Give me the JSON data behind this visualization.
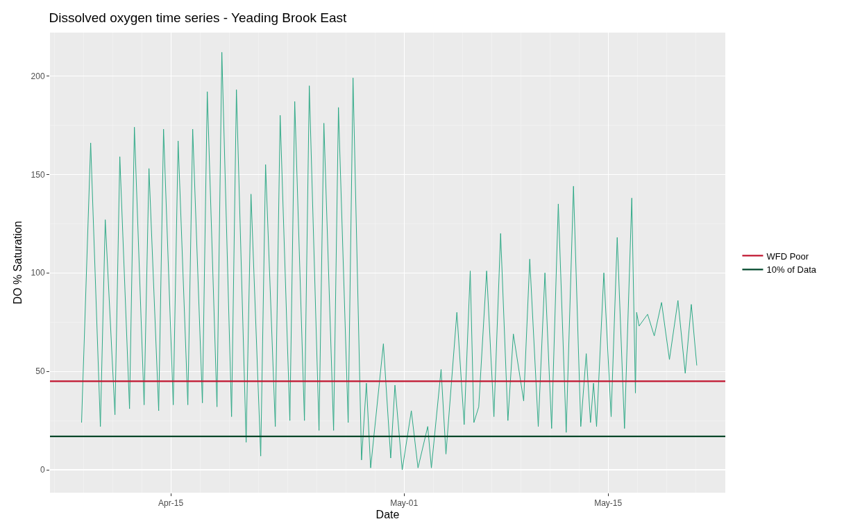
{
  "chart_data": {
    "type": "line",
    "title": "Dissolved oxygen time series - Yeading Brook East",
    "xlabel": "Date",
    "ylabel": "DO % Saturation",
    "x": [
      "--04-08T21:00",
      "--04-09T12:00",
      "--04-10T04:00",
      "--04-10T12:00",
      "--04-11T04:00",
      "--04-11T12:00",
      "--04-12T04:00",
      "--04-12T12:00",
      "--04-13T04:00",
      "--04-13T12:00",
      "--04-14T04:00",
      "--04-14T12:00",
      "--04-15T04:00",
      "--04-15T12:00",
      "--04-16T04:00",
      "--04-16T12:00",
      "--04-17T04:00",
      "--04-17T12:00",
      "--04-18T04:00",
      "--04-18T12:00",
      "--04-19T04:00",
      "--04-19T12:00",
      "--04-20T04:00",
      "--04-20T12:00",
      "--04-21T04:00",
      "--04-21T12:00",
      "--04-22T04:00",
      "--04-22T12:00",
      "--04-23T04:00",
      "--04-23T12:00",
      "--04-24T04:00",
      "--04-24T12:00",
      "--04-25T04:00",
      "--04-25T12:00",
      "--04-26T04:00",
      "--04-26T12:00",
      "--04-27T04:00",
      "--04-27T12:00",
      "--04-28T02:00",
      "--04-28T10:00",
      "--04-28T17:00",
      "--04-29T14:00",
      "--04-30T02:00",
      "--04-30T09:00",
      "--04-30T21:00",
      "--05-01T12:00",
      "--05-01T23:00",
      "--05-02T15:00",
      "--05-02T21:00",
      "--05-03T13:00",
      "--05-03T21:00",
      "--05-04T15:00",
      "--05-05T03:00",
      "--05-05T13:00",
      "--05-05T19:00",
      "--05-06T03:00",
      "--05-06T16:00",
      "--05-07T04:00",
      "--05-07T15:00",
      "--05-08T03:00",
      "--05-08T12:00",
      "--05-09T05:00",
      "--05-09T15:00",
      "--05-10T05:00",
      "--05-10T16:00",
      "--05-11T03:00",
      "--05-11T14:00",
      "--05-12T03:00",
      "--05-12T15:00",
      "--05-13T03:00",
      "--05-13T12:00",
      "--05-13T19:00",
      "--05-14T00:00",
      "--05-14T05:00",
      "--05-14T17:00",
      "--05-15T05:00",
      "--05-15T15:00",
      "--05-16T03:00",
      "--05-16T15:00",
      "--05-16T21:00",
      "--05-16T23:00",
      "--05-17T03:00",
      "--05-17T17:00",
      "--05-18T04:00",
      "--05-18T16:00",
      "--05-19T05:00",
      "--05-19T19:00",
      "--05-20T07:00",
      "--05-20T17:00",
      "--05-21T02:00"
    ],
    "series": [
      {
        "color": "#2ca885",
        "values": [
          24,
          166,
          22,
          127,
          28,
          159,
          31,
          174,
          33,
          153,
          30,
          173,
          33,
          167,
          33,
          173,
          34,
          192,
          32,
          212,
          27,
          193,
          14,
          140,
          7,
          155,
          22,
          180,
          25,
          187,
          25,
          195,
          20,
          176,
          20,
          184,
          24,
          199,
          5,
          44,
          1,
          64,
          6,
          43,
          0,
          30,
          1,
          22,
          1,
          51,
          8,
          80,
          23,
          101,
          24,
          32,
          101,
          27,
          120,
          25,
          69,
          35,
          107,
          22,
          100,
          21,
          135,
          19,
          144,
          22,
          59,
          24,
          44,
          22,
          100,
          27,
          118,
          21,
          138,
          39,
          80,
          73,
          79,
          68,
          85,
          56,
          86,
          49,
          84,
          53
        ]
      }
    ],
    "xlim": [
      "--04-06T17:00",
      "--05-23T01:00"
    ],
    "xticks": [
      {
        "value": "--04-15",
        "label": "Apr-15"
      },
      {
        "value": "--05-01",
        "label": "May-01"
      },
      {
        "value": "--05-15",
        "label": "May-15"
      }
    ],
    "ylim": [
      -11.6,
      222
    ],
    "yticks": [
      0,
      50,
      100,
      150,
      200
    ],
    "grid": true,
    "legend": "right",
    "ref_lines": [
      {
        "axis": "y",
        "value": 45,
        "label": "WFD Poor",
        "color": "#c0142f"
      },
      {
        "axis": "y",
        "value": 17,
        "label": "10% of Data",
        "color": "#00472a"
      }
    ]
  }
}
